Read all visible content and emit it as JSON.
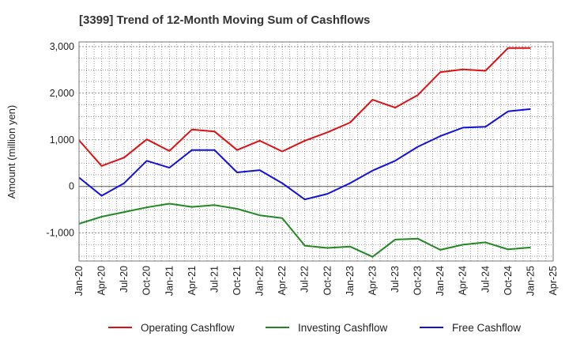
{
  "chart_data": {
    "type": "line",
    "title": "[3399]  Trend of 12-Month Moving Sum of Cashflows",
    "ylabel": "Amount (million yen)",
    "xlabel": "",
    "ylim": [
      -1600,
      3100
    ],
    "yticks": [
      3000,
      2000,
      1000,
      0,
      -1000
    ],
    "ytick_labels": [
      "3,000",
      "2,000",
      "1,000",
      "0",
      "-1,000"
    ],
    "xtick_labels": [
      "Jan-20",
      "Apr-20",
      "Jul-20",
      "Oct-20",
      "Jan-21",
      "Apr-21",
      "Jul-21",
      "Oct-21",
      "Jan-22",
      "Apr-22",
      "Jul-22",
      "Oct-22",
      "Jan-23",
      "Apr-23",
      "Jul-23",
      "Oct-23",
      "Jan-24",
      "Apr-24",
      "Jul-24",
      "Oct-24",
      "Jan-25",
      "Apr-25"
    ],
    "x": [
      "Jan-20",
      "Apr-20",
      "Jul-20",
      "Oct-20",
      "Jan-21",
      "Apr-21",
      "Jul-21",
      "Oct-21",
      "Jan-22",
      "Apr-22",
      "Jul-22",
      "Oct-22",
      "Jan-23",
      "Apr-23",
      "Jul-23",
      "Oct-23",
      "Jan-24",
      "Apr-24",
      "Jul-24",
      "Oct-24",
      "Jan-25"
    ],
    "grid": true,
    "legend_position": "bottom",
    "series": [
      {
        "name": "Operating Cashflow",
        "color": "#dd1111",
        "values": [
          990,
          440,
          620,
          1010,
          760,
          1220,
          1180,
          780,
          980,
          750,
          980,
          1160,
          1370,
          1860,
          1690,
          1960,
          2450,
          2510,
          2480,
          2970,
          2970
        ]
      },
      {
        "name": "Investing Cashflow",
        "color": "#228822",
        "values": [
          -800,
          -650,
          -550,
          -450,
          -370,
          -440,
          -400,
          -480,
          -620,
          -680,
          -1270,
          -1320,
          -1290,
          -1510,
          -1140,
          -1120,
          -1360,
          -1250,
          -1200,
          -1350,
          -1310
        ]
      },
      {
        "name": "Free Cashflow",
        "color": "#1111dd",
        "values": [
          190,
          -200,
          70,
          550,
          400,
          780,
          780,
          300,
          350,
          70,
          -280,
          -160,
          70,
          340,
          550,
          850,
          1080,
          1260,
          1280,
          1610,
          1660
        ]
      }
    ]
  }
}
